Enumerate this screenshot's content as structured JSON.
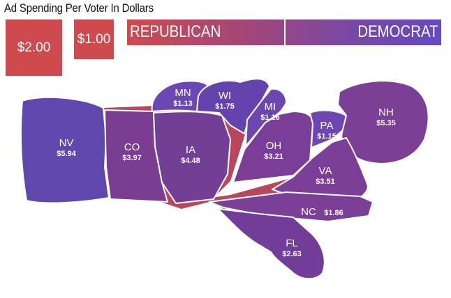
{
  "title": "Ad Spending Per Voter In Dollars",
  "legend": {
    "swatch_big_label": "$2.00",
    "swatch_small_label": "$1.00",
    "left_label": "REPUBLICAN",
    "right_label": "DEMOCRAT",
    "colors": {
      "republican": "#cf4a4e",
      "democrat": "#6548c4"
    }
  },
  "states": {
    "NV": {
      "abbr": "NV",
      "value": "$5.94"
    },
    "CO": {
      "abbr": "CO",
      "value": "$3.97"
    },
    "IA": {
      "abbr": "IA",
      "value": "$4.48"
    },
    "MN": {
      "abbr": "MN",
      "value": "$1.13"
    },
    "WI": {
      "abbr": "WI",
      "value": "$1.75"
    },
    "MI": {
      "abbr": "MI",
      "value": "$1.16"
    },
    "OH": {
      "abbr": "OH",
      "value": "$3.21"
    },
    "PA": {
      "abbr": "PA",
      "value": "$1.15"
    },
    "NH": {
      "abbr": "NH",
      "value": "$5.35"
    },
    "VA": {
      "abbr": "VA",
      "value": "$3.51"
    },
    "NC": {
      "abbr": "NC",
      "value": "$1.86"
    },
    "FL": {
      "abbr": "FL",
      "value": "$2.63"
    }
  }
}
